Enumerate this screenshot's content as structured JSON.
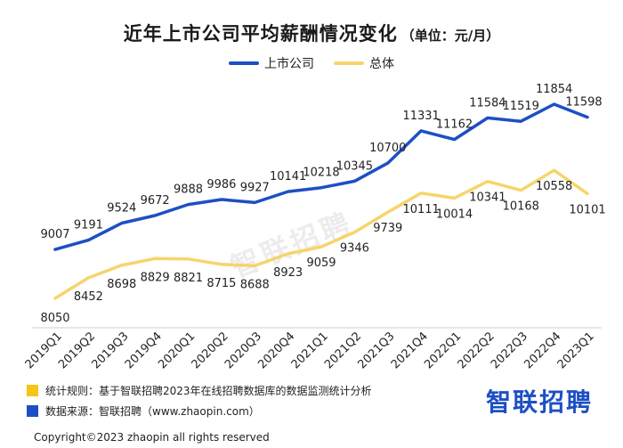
{
  "header": {
    "title": "近年上市公司平均薪酬情况变化",
    "subtitle": "（单位：元/月）"
  },
  "legend": [
    {
      "label": "上市公司",
      "color": "#1d4fc4"
    },
    {
      "label": "总体",
      "color": "#f7d46b"
    }
  ],
  "chart_data": {
    "type": "line",
    "categories": [
      "2019Q1",
      "2019Q2",
      "2019Q3",
      "2019Q4",
      "2020Q1",
      "2020Q2",
      "2020Q3",
      "2020Q4",
      "2021Q1",
      "2021Q2",
      "2021Q3",
      "2021Q4",
      "2022Q1",
      "2022Q2",
      "2022Q3",
      "2022Q4",
      "2023Q1"
    ],
    "series": [
      {
        "name": "上市公司",
        "color": "#1d4fc4",
        "values": [
          9007,
          9191,
          9524,
          9672,
          9888,
          9986,
          9927,
          10141,
          10218,
          10345,
          10700,
          11331,
          11162,
          11584,
          11519,
          11854,
          11598
        ]
      },
      {
        "name": "总体",
        "color": "#f7d46b",
        "values": [
          8050,
          8452,
          8698,
          8829,
          8821,
          8715,
          8688,
          8923,
          9059,
          9346,
          9739,
          10111,
          10014,
          10341,
          10168,
          10558,
          10101
        ]
      }
    ],
    "ylim": [
      7700,
      12150
    ],
    "grid": false,
    "legend_position": "top-center"
  },
  "footer": {
    "rule_text": "统计规则：基于智联招聘2023年在线招聘数据库的数据监测统计分析",
    "rule_color": "#f5c518",
    "source_text": "数据来源：智联招聘（www.zhaopin.com）",
    "source_color": "#1d4fc4",
    "copyright": "Copyright©2023 zhaopin all rights reserved"
  },
  "brand": {
    "logo_text": "智联招聘",
    "watermark": "智联招聘"
  }
}
